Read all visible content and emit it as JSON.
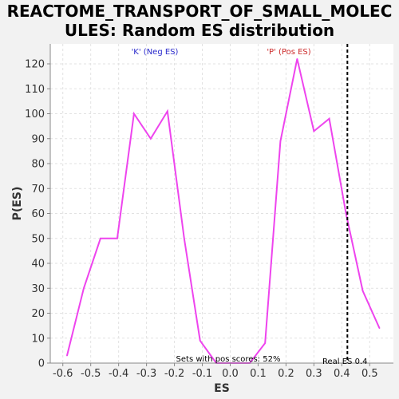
{
  "title_lines": [
    "REACTOME_TRANSPORT_OF_SMALL_MOLEC",
    "ULES: Random ES distribution"
  ],
  "chart_data": {
    "type": "line",
    "title": "REACTOME_TRANSPORT_OF_SMALL_MOLECULES: Random ES distribution",
    "xlabel": "ES",
    "ylabel": "P(ES)",
    "xlim": [
      -0.645,
      0.585
    ],
    "ylim": [
      0,
      128
    ],
    "xticks": [
      -0.6,
      -0.5,
      -0.4,
      -0.3,
      -0.2,
      -0.1,
      0.0,
      0.1,
      0.2,
      0.3,
      0.4,
      0.5
    ],
    "xtick_labels": [
      "-0.6",
      "-0.5",
      "-0.4",
      "-0.3",
      "-0.2",
      "-0.1",
      "0.0",
      "0.1",
      "0.2",
      "0.3",
      "0.4",
      "0.5"
    ],
    "yticks": [
      0,
      10,
      20,
      30,
      40,
      50,
      60,
      70,
      80,
      90,
      100,
      110,
      120
    ],
    "ytick_labels": [
      "0",
      "10",
      "20",
      "30",
      "40",
      "50",
      "60",
      "70",
      "80",
      "90",
      "100",
      "110",
      "120"
    ],
    "grid": true,
    "series": [
      {
        "color": "#ee44ee",
        "x": [
          -0.585,
          -0.525,
          -0.465,
          -0.405,
          -0.345,
          -0.285,
          -0.225,
          -0.165,
          -0.108,
          -0.05,
          0.01,
          0.07,
          0.125,
          0.18,
          0.24,
          0.3,
          0.355,
          0.415,
          0.475,
          0.535
        ],
        "y": [
          3,
          30,
          50,
          50,
          100,
          90,
          101,
          50,
          9,
          0,
          0,
          0,
          8,
          89,
          122,
          93,
          98,
          60,
          29,
          14
        ]
      }
    ],
    "real_es": 0.42,
    "real_es_label": "Real ES 0.4",
    "annotations": {
      "neg": {
        "text": "'K' (Neg ES)",
        "color": "#2a2acc"
      },
      "pos": {
        "text": "'P' (Pos ES)",
        "color": "#cc2a2a"
      },
      "pos_scores": "Sets with pos scores: 52%"
    }
  }
}
